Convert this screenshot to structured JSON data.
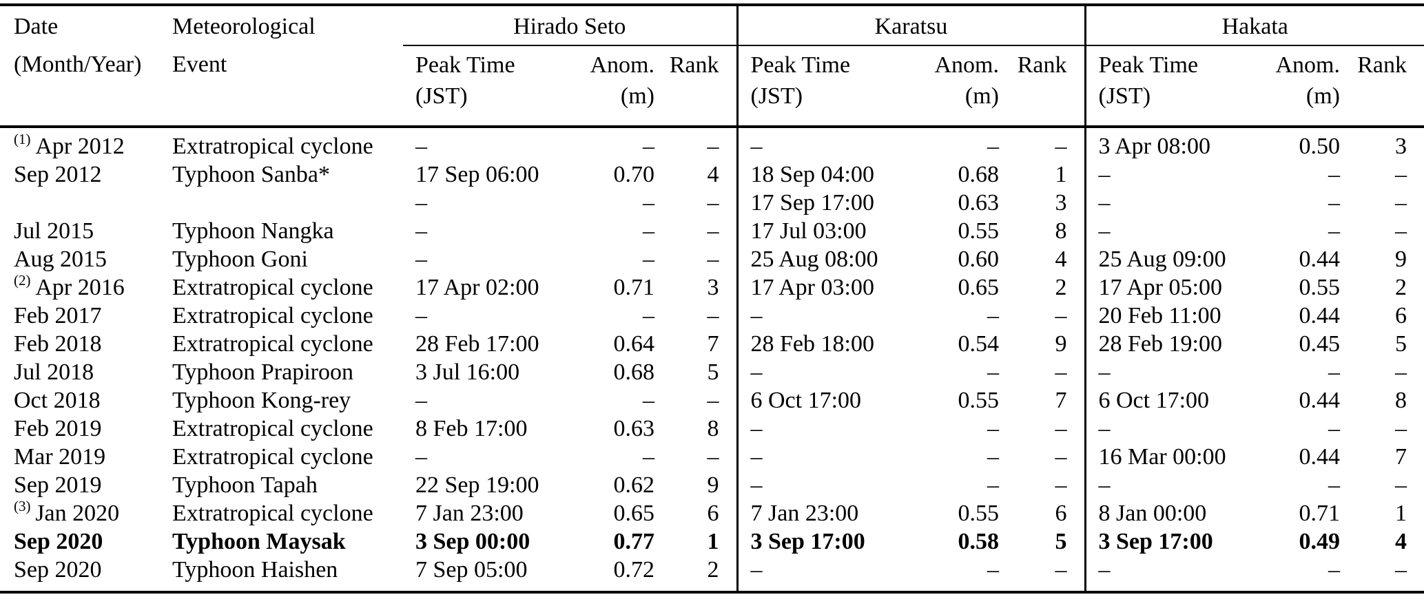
{
  "table": {
    "header": {
      "date_line1": "Date",
      "date_line2": "(Month/Year)",
      "event_line1": "Meteorological",
      "event_line2": "Event"
    },
    "groups": [
      "Hirado Seto",
      "Karatsu",
      "Hakata"
    ],
    "subheaders": {
      "peak_line1": "Peak Time",
      "peak_line2": "(JST)",
      "anom_line1": "Anom.",
      "anom_line2": "(m)",
      "rank": "Rank"
    },
    "dash": "–",
    "rows": [
      {
        "sup": "(1)",
        "date": "Apr 2012",
        "event": "Extratropical cyclone",
        "bold": false,
        "hirado": [
          "–",
          "–",
          "–"
        ],
        "karatsu": [
          "–",
          "–",
          "–"
        ],
        "hakata": [
          "3 Apr 08:00",
          "0.50",
          "3"
        ]
      },
      {
        "sup": "",
        "date": "Sep 2012",
        "event": "Typhoon Sanba*",
        "bold": false,
        "hirado": [
          "17 Sep 06:00",
          "0.70",
          "4"
        ],
        "karatsu": [
          "18 Sep 04:00",
          "0.68",
          "1"
        ],
        "hakata": [
          "–",
          "–",
          "–"
        ]
      },
      {
        "sup": "",
        "date": "",
        "event": "",
        "bold": false,
        "hirado": [
          "–",
          "–",
          "–"
        ],
        "karatsu": [
          "17 Sep 17:00",
          "0.63",
          "3"
        ],
        "hakata": [
          "–",
          "–",
          "–"
        ]
      },
      {
        "sup": "",
        "date": "Jul 2015",
        "event": "Typhoon Nangka",
        "bold": false,
        "hirado": [
          "–",
          "–",
          "–"
        ],
        "karatsu": [
          "17 Jul 03:00",
          "0.55",
          "8"
        ],
        "hakata": [
          "–",
          "–",
          "–"
        ]
      },
      {
        "sup": "",
        "date": "Aug 2015",
        "event": "Typhoon Goni",
        "bold": false,
        "hirado": [
          "–",
          "–",
          "–"
        ],
        "karatsu": [
          "25 Aug 08:00",
          "0.60",
          "4"
        ],
        "hakata": [
          "25 Aug 09:00",
          "0.44",
          "9"
        ]
      },
      {
        "sup": "(2)",
        "date": "Apr 2016",
        "event": "Extratropical cyclone",
        "bold": false,
        "hirado": [
          "17 Apr 02:00",
          "0.71",
          "3"
        ],
        "karatsu": [
          "17 Apr 03:00",
          "0.65",
          "2"
        ],
        "hakata": [
          "17 Apr 05:00",
          "0.55",
          "2"
        ]
      },
      {
        "sup": "",
        "date": "Feb 2017",
        "event": "Extratropical cyclone",
        "bold": false,
        "hirado": [
          "–",
          "–",
          "–"
        ],
        "karatsu": [
          "–",
          "–",
          "–"
        ],
        "hakata": [
          "20 Feb 11:00",
          "0.44",
          "6"
        ]
      },
      {
        "sup": "",
        "date": "Feb 2018",
        "event": "Extratropical cyclone",
        "bold": false,
        "hirado": [
          "28 Feb 17:00",
          "0.64",
          "7"
        ],
        "karatsu": [
          "28 Feb 18:00",
          "0.54",
          "9"
        ],
        "hakata": [
          "28 Feb 19:00",
          "0.45",
          "5"
        ]
      },
      {
        "sup": "",
        "date": "Jul 2018",
        "event": "Typhoon Prapiroon",
        "bold": false,
        "hirado": [
          "3 Jul 16:00",
          "0.68",
          "5"
        ],
        "karatsu": [
          "–",
          "–",
          "–"
        ],
        "hakata": [
          "–",
          "–",
          "–"
        ]
      },
      {
        "sup": "",
        "date": "Oct 2018",
        "event": "Typhoon Kong-rey",
        "bold": false,
        "hirado": [
          "–",
          "–",
          "–"
        ],
        "karatsu": [
          "6 Oct 17:00",
          "0.55",
          "7"
        ],
        "hakata": [
          "6 Oct 17:00",
          "0.44",
          "8"
        ]
      },
      {
        "sup": "",
        "date": "Feb 2019",
        "event": "Extratropical cyclone",
        "bold": false,
        "hirado": [
          "8 Feb 17:00",
          "0.63",
          "8"
        ],
        "karatsu": [
          "–",
          "–",
          "–"
        ],
        "hakata": [
          "–",
          "–",
          "–"
        ]
      },
      {
        "sup": "",
        "date": "Mar 2019",
        "event": "Extratropical cyclone",
        "bold": false,
        "hirado": [
          "–",
          "–",
          "–"
        ],
        "karatsu": [
          "–",
          "–",
          "–"
        ],
        "hakata": [
          "16 Mar 00:00",
          "0.44",
          "7"
        ]
      },
      {
        "sup": "",
        "date": "Sep 2019",
        "event": "Typhoon Tapah",
        "bold": false,
        "hirado": [
          "22 Sep 19:00",
          "0.62",
          "9"
        ],
        "karatsu": [
          "–",
          "–",
          "–"
        ],
        "hakata": [
          "–",
          "–",
          "–"
        ]
      },
      {
        "sup": "(3)",
        "date": "Jan 2020",
        "event": "Extratropical cyclone",
        "bold": false,
        "hirado": [
          "7 Jan 23:00",
          "0.65",
          "6"
        ],
        "karatsu": [
          "7 Jan 23:00",
          "0.55",
          "6"
        ],
        "hakata": [
          "8 Jan 00:00",
          "0.71",
          "1"
        ]
      },
      {
        "sup": "",
        "date": "Sep 2020",
        "event": "Typhoon Maysak",
        "bold": true,
        "hirado": [
          "3 Sep 00:00",
          "0.77",
          "1"
        ],
        "karatsu": [
          "3 Sep 17:00",
          "0.58",
          "5"
        ],
        "hakata": [
          "3 Sep 17:00",
          "0.49",
          "4"
        ]
      },
      {
        "sup": "",
        "date": "Sep 2020",
        "event": "Typhoon Haishen",
        "bold": false,
        "hirado": [
          "7 Sep 05:00",
          "0.72",
          "2"
        ],
        "karatsu": [
          "–",
          "–",
          "–"
        ],
        "hakata": [
          "–",
          "–",
          "–"
        ]
      }
    ]
  }
}
